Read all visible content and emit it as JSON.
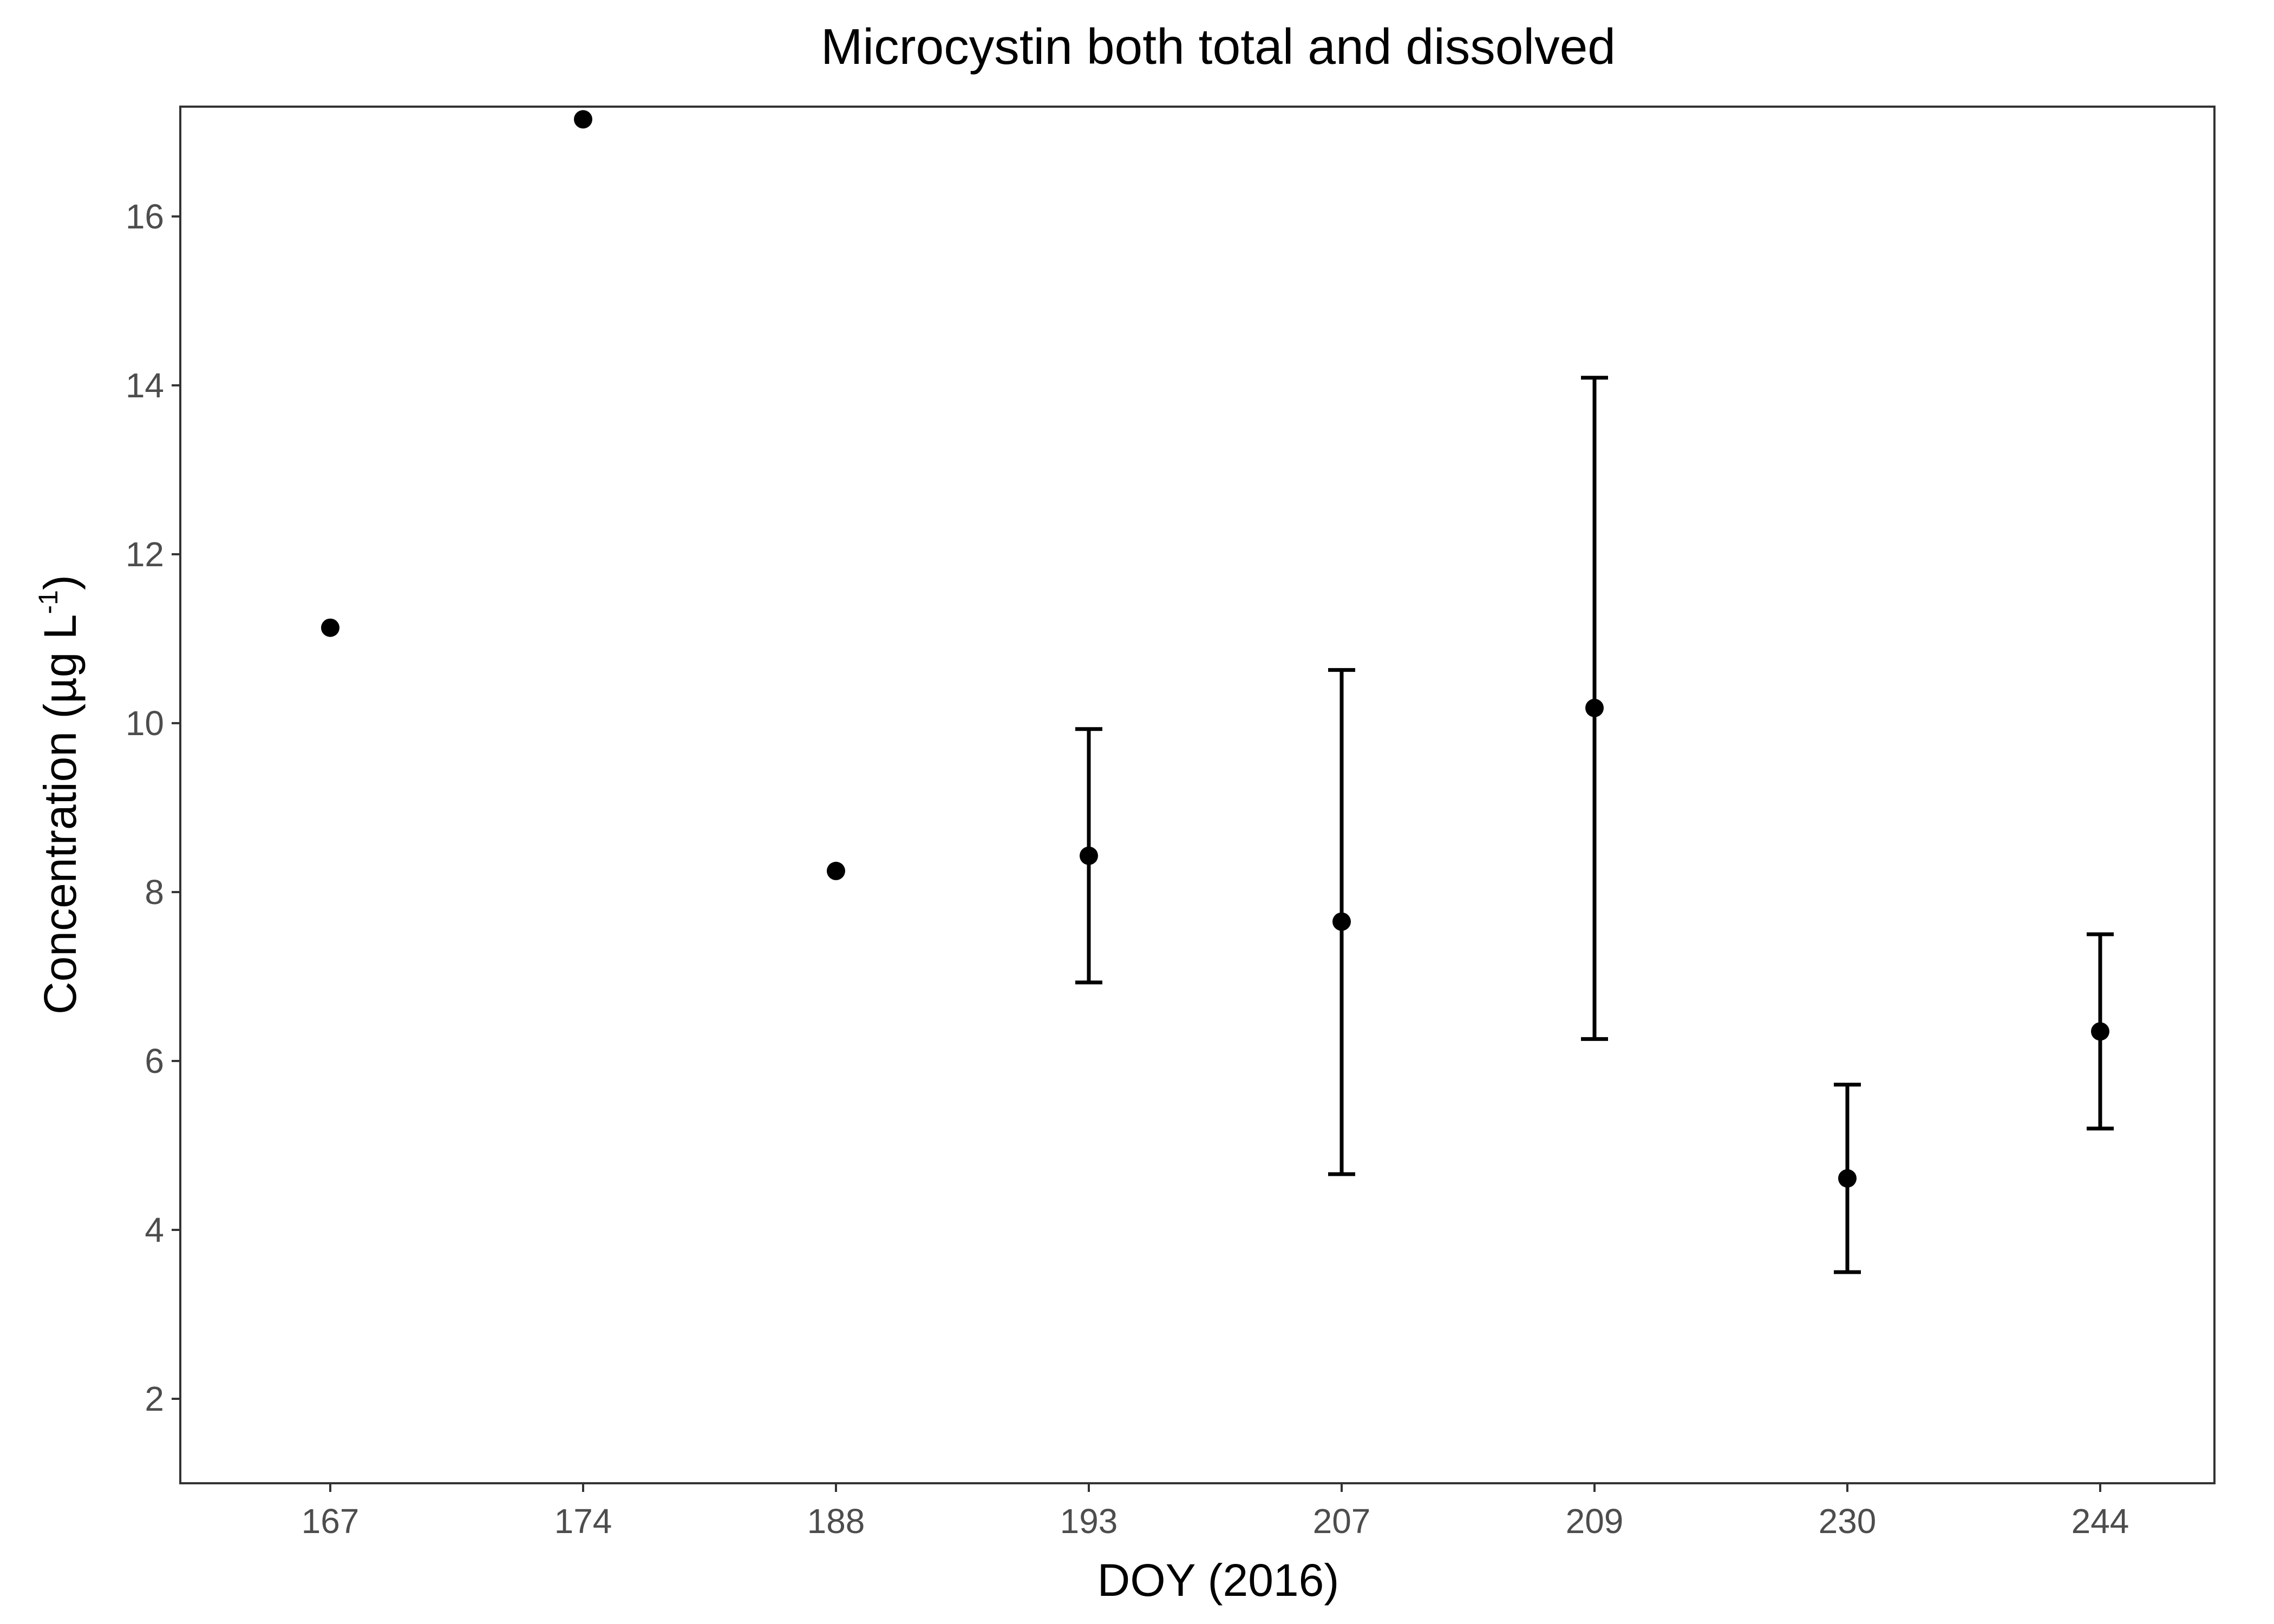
{
  "chart_data": {
    "type": "scatter",
    "title": "Microcystin both total and dissolved",
    "xlabel": "DOY (2016)",
    "ylabel_main": "Concentration (µg L",
    "ylabel_sup": "-1",
    "ylabel_close": ")",
    "categories": [
      "167",
      "174",
      "188",
      "193",
      "207",
      "209",
      "230",
      "244"
    ],
    "points": [
      {
        "x": "167",
        "y": 11.13
      },
      {
        "x": "174",
        "y": 17.15
      },
      {
        "x": "188",
        "y": 8.25
      },
      {
        "x": "193",
        "y": 8.43,
        "ymin": 6.93,
        "ymax": 9.93
      },
      {
        "x": "207",
        "y": 7.65,
        "ymin": 4.66,
        "ymax": 10.63
      },
      {
        "x": "209",
        "y": 10.18,
        "ymin": 6.26,
        "ymax": 14.09
      },
      {
        "x": "230",
        "y": 4.61,
        "ymin": 3.5,
        "ymax": 5.72
      },
      {
        "x": "244",
        "y": 6.35,
        "ymin": 5.2,
        "ymax": 7.5
      }
    ],
    "yticks": [
      2,
      4,
      6,
      8,
      10,
      12,
      14,
      16
    ],
    "ylim": [
      1.0,
      17.3
    ],
    "grid": false,
    "legend": "none",
    "colors": {
      "point": "#000000",
      "errorbar": "#000000",
      "panel_border": "#333333"
    }
  }
}
